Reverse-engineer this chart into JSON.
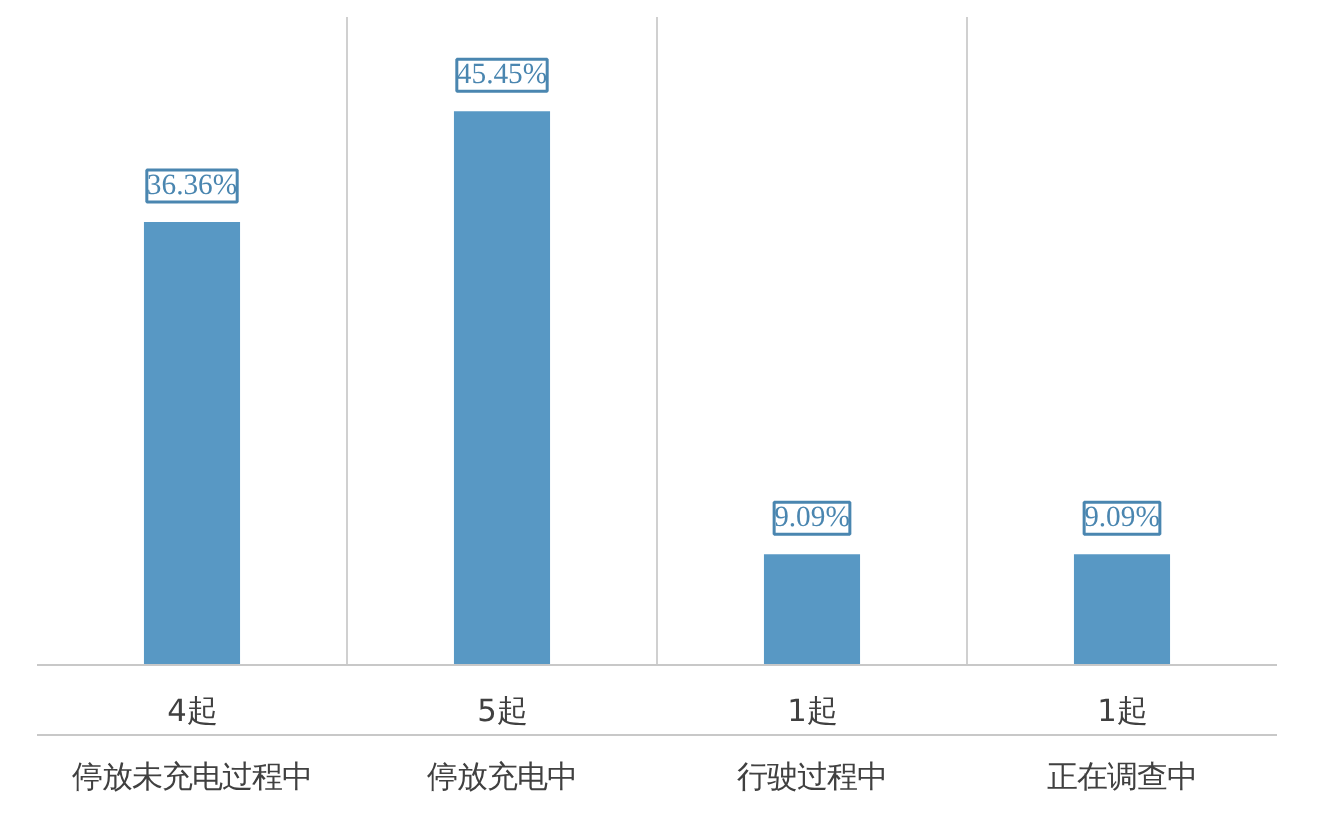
{
  "chart_data": {
    "type": "bar",
    "categories": [
      "停放未充电过程中",
      "停放充电中",
      "行驶过程中",
      "正在调查中"
    ],
    "annotations": [
      "4起",
      "5起",
      "1起",
      "1起"
    ],
    "values": [
      36.36,
      45.45,
      9.09,
      9.09
    ],
    "color": "#5898c4",
    "value_labels": [
      "36.36%",
      "45.45%",
      "9.09%",
      "9.09%"
    ],
    "grid": "x"
  }
}
